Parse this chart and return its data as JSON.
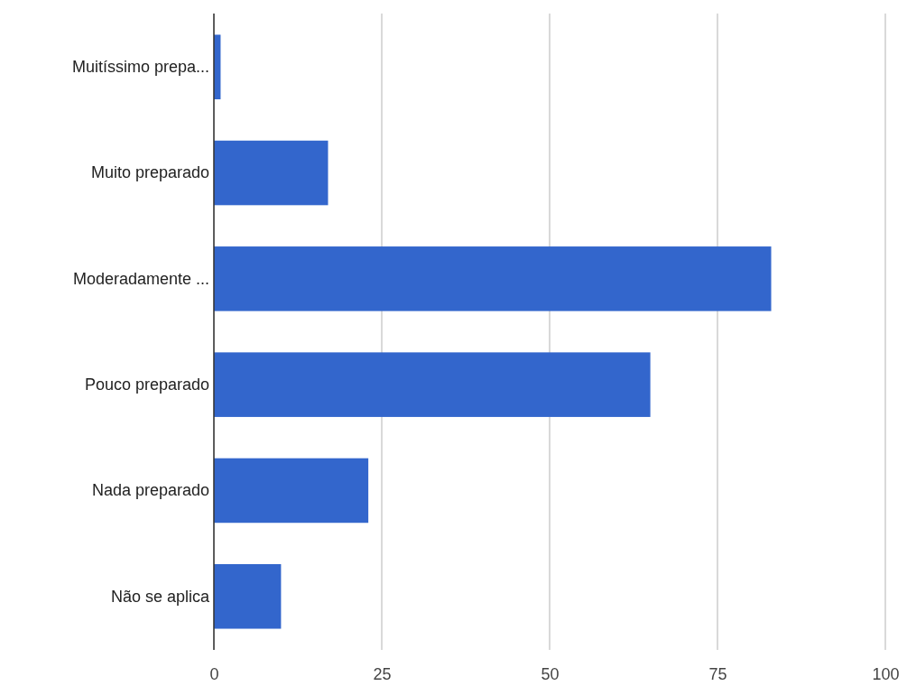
{
  "chart_data": {
    "type": "bar",
    "orientation": "horizontal",
    "categories": [
      "Muitíssimo prepa...",
      "Muito preparado",
      "Moderadamente ...",
      "Pouco preparado",
      "Nada preparado",
      "Não se aplica"
    ],
    "values": [
      1,
      17,
      83,
      65,
      23,
      10
    ],
    "color": "#3366cc",
    "xlim": [
      0,
      100
    ],
    "xticks": [
      0,
      25,
      50,
      75,
      100
    ],
    "grid": "x"
  }
}
